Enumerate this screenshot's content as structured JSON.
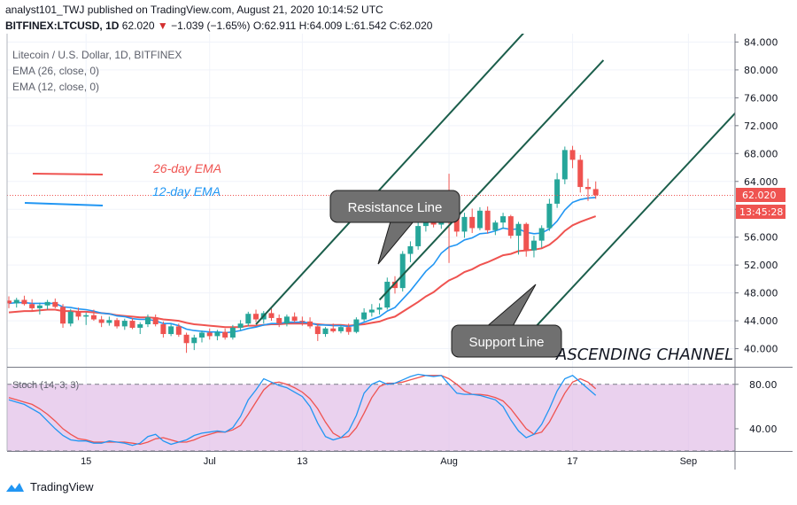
{
  "header": {
    "line1": "analyst101_TWJ published on TradingView.com, August 21, 2020 10:14:52 UTC",
    "symbol": "BITFINEX:LTCUSD, 1D",
    "last": "62.020",
    "change": "−1.039 (−1.65%)",
    "ohlc": "O:62.911 H:64.009 L:61.542 C:62.020"
  },
  "legend": {
    "title": "Litecoin / U.S. Dollar, 1D, BITFINEX",
    "ema26": "EMA (26, close, 0)",
    "ema12": "EMA (12, close, 0)",
    "ema26_note": "26-day EMA",
    "ema12_note": "12-day EMA",
    "stoch": "Stoch (14, 3, 3)"
  },
  "annotations": {
    "resistance": "Resistance Line",
    "support": "Support Line",
    "channel": "ASCENDING CHANNEL"
  },
  "price_labels": {
    "last": "62.020",
    "countdown": "13:45:28"
  },
  "branding": {
    "name": "TradingView"
  },
  "colors": {
    "up": "#26a69a",
    "down": "#ef5350",
    "ema26": "#ef5350",
    "ema12": "#2196f3",
    "stoch_k": "#2196f3",
    "stoch_d": "#ef5350",
    "stoch_band": "#e1bee7",
    "trendline": "#1b5e4b"
  },
  "chart_data": {
    "type": "candlestick",
    "y_ticks": [
      "84.000",
      "80.000",
      "76.000",
      "72.000",
      "68.000",
      "64.000",
      "60.000",
      "56.000",
      "52.000",
      "48.000",
      "44.000",
      "40.000"
    ],
    "ylim": [
      37.4,
      85.2
    ],
    "x_ticks": [
      {
        "label": "15",
        "index": 10
      },
      {
        "label": "Jul",
        "index": 26
      },
      {
        "label": "13",
        "index": 38
      },
      {
        "label": "Aug",
        "index": 57
      },
      {
        "label": "17",
        "index": 73
      },
      {
        "label": "Sep",
        "index": 88
      }
    ],
    "candles": [
      [
        46.9,
        47.5,
        45.8,
        46.5
      ],
      [
        46.5,
        47.3,
        45.9,
        47.0
      ],
      [
        47.0,
        47.6,
        46.2,
        46.4
      ],
      [
        46.4,
        47.1,
        45.3,
        45.8
      ],
      [
        45.8,
        46.6,
        44.9,
        46.2
      ],
      [
        46.2,
        47.0,
        45.6,
        46.7
      ],
      [
        46.7,
        47.2,
        45.8,
        46.0
      ],
      [
        46.0,
        46.4,
        43.0,
        43.6
      ],
      [
        43.6,
        45.7,
        43.2,
        45.3
      ],
      [
        45.3,
        45.9,
        44.1,
        44.6
      ],
      [
        44.6,
        45.2,
        43.4,
        44.8
      ],
      [
        44.8,
        45.6,
        44.0,
        44.2
      ],
      [
        44.2,
        44.7,
        43.1,
        43.7
      ],
      [
        43.7,
        44.6,
        43.3,
        44.1
      ],
      [
        44.1,
        44.4,
        42.9,
        43.2
      ],
      [
        43.2,
        44.3,
        42.7,
        44.0
      ],
      [
        44.0,
        44.4,
        42.8,
        43.0
      ],
      [
        43.0,
        43.8,
        42.1,
        43.5
      ],
      [
        43.5,
        44.9,
        43.1,
        44.5
      ],
      [
        44.5,
        44.9,
        43.2,
        43.5
      ],
      [
        43.5,
        43.9,
        41.6,
        42.1
      ],
      [
        42.1,
        43.5,
        41.8,
        43.2
      ],
      [
        43.2,
        43.6,
        41.7,
        42.0
      ],
      [
        42.0,
        42.3,
        39.4,
        40.8
      ],
      [
        40.8,
        42.0,
        39.8,
        41.6
      ],
      [
        41.6,
        42.6,
        40.9,
        42.3
      ],
      [
        42.3,
        42.9,
        41.3,
        41.8
      ],
      [
        41.8,
        42.7,
        41.2,
        42.4
      ],
      [
        42.4,
        42.9,
        41.3,
        41.6
      ],
      [
        41.6,
        43.4,
        41.3,
        43.0
      ],
      [
        43.0,
        44.1,
        42.6,
        43.6
      ],
      [
        43.6,
        45.3,
        43.2,
        45.0
      ],
      [
        45.0,
        45.6,
        43.8,
        44.2
      ],
      [
        44.2,
        45.4,
        43.6,
        45.1
      ],
      [
        45.1,
        45.9,
        44.0,
        44.4
      ],
      [
        44.4,
        44.9,
        43.1,
        43.6
      ],
      [
        43.6,
        44.9,
        43.2,
        44.6
      ],
      [
        44.6,
        45.2,
        43.8,
        44.0
      ],
      [
        44.0,
        44.6,
        43.3,
        43.9
      ],
      [
        43.9,
        44.5,
        42.9,
        43.2
      ],
      [
        43.2,
        43.6,
        41.1,
        42.1
      ],
      [
        42.1,
        43.1,
        41.7,
        42.9
      ],
      [
        42.9,
        43.6,
        42.3,
        42.5
      ],
      [
        42.5,
        43.4,
        42.2,
        43.1
      ],
      [
        43.1,
        43.6,
        42.0,
        42.4
      ],
      [
        42.4,
        44.5,
        42.2,
        44.2
      ],
      [
        44.2,
        45.8,
        43.9,
        45.2
      ],
      [
        45.2,
        46.4,
        44.6,
        45.6
      ],
      [
        45.6,
        46.5,
        44.9,
        45.9
      ],
      [
        45.9,
        50.2,
        45.6,
        49.6
      ],
      [
        49.6,
        50.4,
        47.9,
        48.7
      ],
      [
        48.7,
        54.0,
        48.2,
        53.6
      ],
      [
        53.6,
        55.4,
        52.4,
        54.7
      ],
      [
        54.7,
        58.2,
        54.2,
        57.6
      ],
      [
        57.6,
        59.0,
        56.8,
        58.6
      ],
      [
        58.6,
        60.5,
        57.4,
        57.8
      ],
      [
        57.8,
        62.6,
        57.2,
        62.1
      ],
      [
        62.1,
        65.1,
        52.3,
        59.6
      ],
      [
        59.6,
        60.7,
        56.1,
        56.8
      ],
      [
        56.8,
        59.5,
        55.9,
        58.9
      ],
      [
        58.9,
        60.1,
        56.6,
        57.3
      ],
      [
        57.3,
        60.3,
        57.0,
        59.8
      ],
      [
        59.8,
        60.4,
        56.5,
        57.0
      ],
      [
        57.0,
        58.4,
        56.3,
        58.1
      ],
      [
        58.1,
        59.5,
        57.2,
        59.0
      ],
      [
        59.0,
        59.2,
        55.8,
        56.2
      ],
      [
        56.2,
        58.2,
        53.5,
        57.9
      ],
      [
        57.9,
        58.1,
        53.2,
        54.1
      ],
      [
        54.1,
        56.2,
        53.1,
        55.5
      ],
      [
        55.5,
        57.7,
        54.5,
        57.3
      ],
      [
        57.3,
        61.5,
        56.9,
        60.8
      ],
      [
        60.8,
        65.2,
        60.2,
        64.3
      ],
      [
        64.3,
        69.0,
        63.6,
        68.5
      ],
      [
        68.5,
        69.1,
        65.9,
        67.1
      ],
      [
        67.1,
        67.8,
        62.4,
        63.2
      ],
      [
        63.2,
        64.4,
        61.2,
        62.9
      ],
      [
        62.9,
        64.0,
        61.5,
        62.0
      ]
    ],
    "ema12": [
      46.5,
      46.6,
      46.6,
      46.5,
      46.5,
      46.5,
      46.5,
      46.0,
      45.9,
      45.7,
      45.6,
      45.4,
      45.1,
      45.0,
      44.7,
      44.6,
      44.3,
      44.2,
      44.2,
      44.0,
      43.6,
      43.6,
      43.3,
      42.8,
      42.6,
      42.5,
      42.4,
      42.4,
      42.3,
      42.4,
      42.6,
      42.9,
      43.1,
      43.4,
      43.6,
      43.6,
      43.8,
      43.8,
      43.8,
      43.7,
      43.4,
      43.4,
      43.3,
      43.3,
      43.2,
      43.4,
      43.8,
      44.2,
      44.6,
      45.4,
      45.9,
      47.1,
      48.3,
      49.7,
      51.1,
      52.1,
      53.7,
      54.6,
      54.9,
      55.6,
      55.9,
      56.5,
      56.6,
      56.9,
      57.3,
      57.1,
      57.2,
      56.7,
      56.5,
      56.6,
      57.2,
      58.3,
      59.9,
      61.0,
      61.4,
      61.6,
      61.7
    ],
    "ema26": [
      45.2,
      45.3,
      45.4,
      45.4,
      45.5,
      45.6,
      45.6,
      45.4,
      45.4,
      45.3,
      45.3,
      45.2,
      45.1,
      45.0,
      44.8,
      44.7,
      44.6,
      44.5,
      44.5,
      44.4,
      44.2,
      44.1,
      44.0,
      43.7,
      43.5,
      43.4,
      43.3,
      43.2,
      43.1,
      43.1,
      43.1,
      43.3,
      43.3,
      43.4,
      43.5,
      43.5,
      43.6,
      43.6,
      43.6,
      43.6,
      43.5,
      43.4,
      43.4,
      43.4,
      43.3,
      43.4,
      43.5,
      43.7,
      43.9,
      44.3,
      44.6,
      45.3,
      46.0,
      46.7,
      47.5,
      48.1,
      49.0,
      49.8,
      50.3,
      51.0,
      51.4,
      52.0,
      52.4,
      52.9,
      53.4,
      53.6,
      54.0,
      54.1,
      54.2,
      54.4,
      54.9,
      55.8,
      56.9,
      57.7,
      58.2,
      58.6,
      59.0
    ],
    "stoch_ylim": [
      20,
      95
    ],
    "stoch_ticks": [
      "80.00",
      "40.00"
    ],
    "stoch_band": [
      20,
      80
    ],
    "stoch_k": [
      66,
      64,
      62,
      58,
      54,
      47,
      40,
      34,
      30,
      29,
      29,
      27,
      27,
      29,
      28,
      27,
      25,
      27,
      33,
      35,
      29,
      26,
      28,
      30,
      34,
      36,
      37,
      38,
      37,
      41,
      51,
      66,
      75,
      85,
      82,
      79,
      77,
      73,
      69,
      60,
      45,
      33,
      30,
      32,
      38,
      52,
      72,
      80,
      83,
      80,
      81,
      84,
      87,
      89,
      88,
      87,
      88,
      80,
      72,
      71,
      71,
      70,
      68,
      66,
      60,
      48,
      38,
      32,
      35,
      44,
      58,
      74,
      85,
      88,
      82,
      76,
      70
    ],
    "stoch_d": [
      68,
      66,
      64,
      62,
      58,
      53,
      47,
      40,
      35,
      31,
      30,
      28,
      28,
      28,
      28,
      28,
      27,
      26,
      28,
      31,
      32,
      30,
      28,
      28,
      30,
      33,
      35,
      37,
      37,
      39,
      43,
      53,
      64,
      75,
      81,
      82,
      80,
      77,
      73,
      67,
      58,
      46,
      36,
      32,
      33,
      41,
      54,
      68,
      78,
      81,
      81,
      82,
      84,
      86,
      88,
      88,
      88,
      85,
      80,
      74,
      71,
      71,
      70,
      68,
      65,
      58,
      49,
      40,
      35,
      37,
      46,
      59,
      72,
      82,
      85,
      82,
      76
    ],
    "trendlines": [
      {
        "name": "Resistance Line",
        "from": [
          48,
          47.0
        ],
        "to": [
          77,
          81.4
        ]
      },
      {
        "name": "Support Line",
        "from": [
          67,
          41.7
        ],
        "to": [
          96,
          76.1
        ]
      },
      {
        "name": "upper channel",
        "from": [
          32,
          43.5
        ],
        "to": [
          67,
          85.7
        ]
      }
    ]
  }
}
